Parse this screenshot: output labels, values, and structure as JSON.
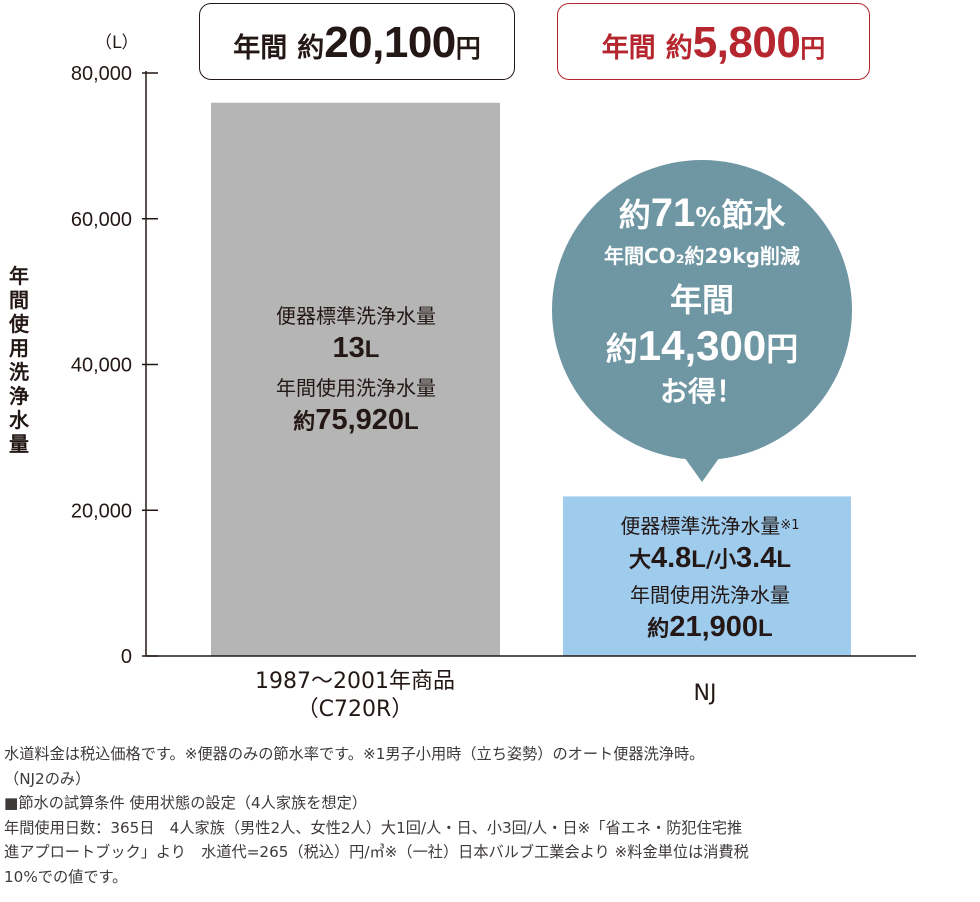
{
  "price_boxes": {
    "old": {
      "label": "年間",
      "prefix": "約",
      "amount": "20,100",
      "suffix": "円",
      "color": "#231815"
    },
    "new": {
      "label": "年間",
      "prefix": "約",
      "amount": "5,800",
      "suffix": "円",
      "color": "#b5262e"
    }
  },
  "chart_data": {
    "type": "bar",
    "unit_label": "（L）",
    "ylabel": "年間使用洗浄水量",
    "ylim": [
      0,
      80000
    ],
    "yticks": [
      "0",
      "20,000",
      "40,000",
      "60,000",
      "80,000"
    ],
    "ytick_values": [
      0,
      20000,
      40000,
      60000,
      80000
    ],
    "grid": false,
    "categories": [
      "1987〜2001年商品\n（C720R）",
      "NJ"
    ],
    "category_lines": [
      [
        "1987〜2001年商品",
        "（C720R）"
      ],
      [
        "NJ"
      ]
    ],
    "values": [
      75920,
      21900
    ],
    "colors": [
      "#b5b5b6",
      "#9fcbed"
    ],
    "bar_labels": [
      {
        "line1": "便器標準洗浄水量",
        "line2": "13",
        "line2_unit": "L",
        "line3": "年間使用洗浄水量",
        "line4_prefix": "約",
        "line4": "75,920",
        "line4_unit": "L"
      },
      {
        "line1": "便器標準洗浄水量",
        "line1_note": "※1",
        "line2a_prefix": "大",
        "line2a": "4.8",
        "line2a_unit": "L",
        "line2_sep": "/",
        "line2b_prefix": "小",
        "line2b": "3.4",
        "line2b_unit": "L",
        "line3": "年間使用洗浄水量",
        "line4_prefix": "約",
        "line4": "21,900",
        "line4_unit": "L"
      }
    ],
    "callout": {
      "color": "#6f96a3",
      "line1_prefix": "約",
      "line1_num": "71",
      "line1_pct": "%",
      "line1_suffix": "節水",
      "line2": "年間CO₂約29kg削減",
      "line3": "年間",
      "line4_prefix": "約",
      "line4_num": "14,300",
      "line4_suffix": "円",
      "line5": "お得！"
    }
  },
  "notes": [
    "水道料金は税込価格です。※便器のみの節水率です。※1男子小用時（立ち姿勢）のオート便器洗浄時。",
    "（NJ2のみ）",
    "■節水の試算条件 使用状態の設定（4人家族を想定）",
    "年間使用日数：365日　4人家族（男性2人、女性2人）大1回/人・日、小3回/人・日※「省エネ・防犯住宅推",
    "進アプロートブック」より　水道代=265（税込）円/㎥※（一社）日本バルブ工業会より ※料金単位は消費税",
    "10%での値です。"
  ]
}
